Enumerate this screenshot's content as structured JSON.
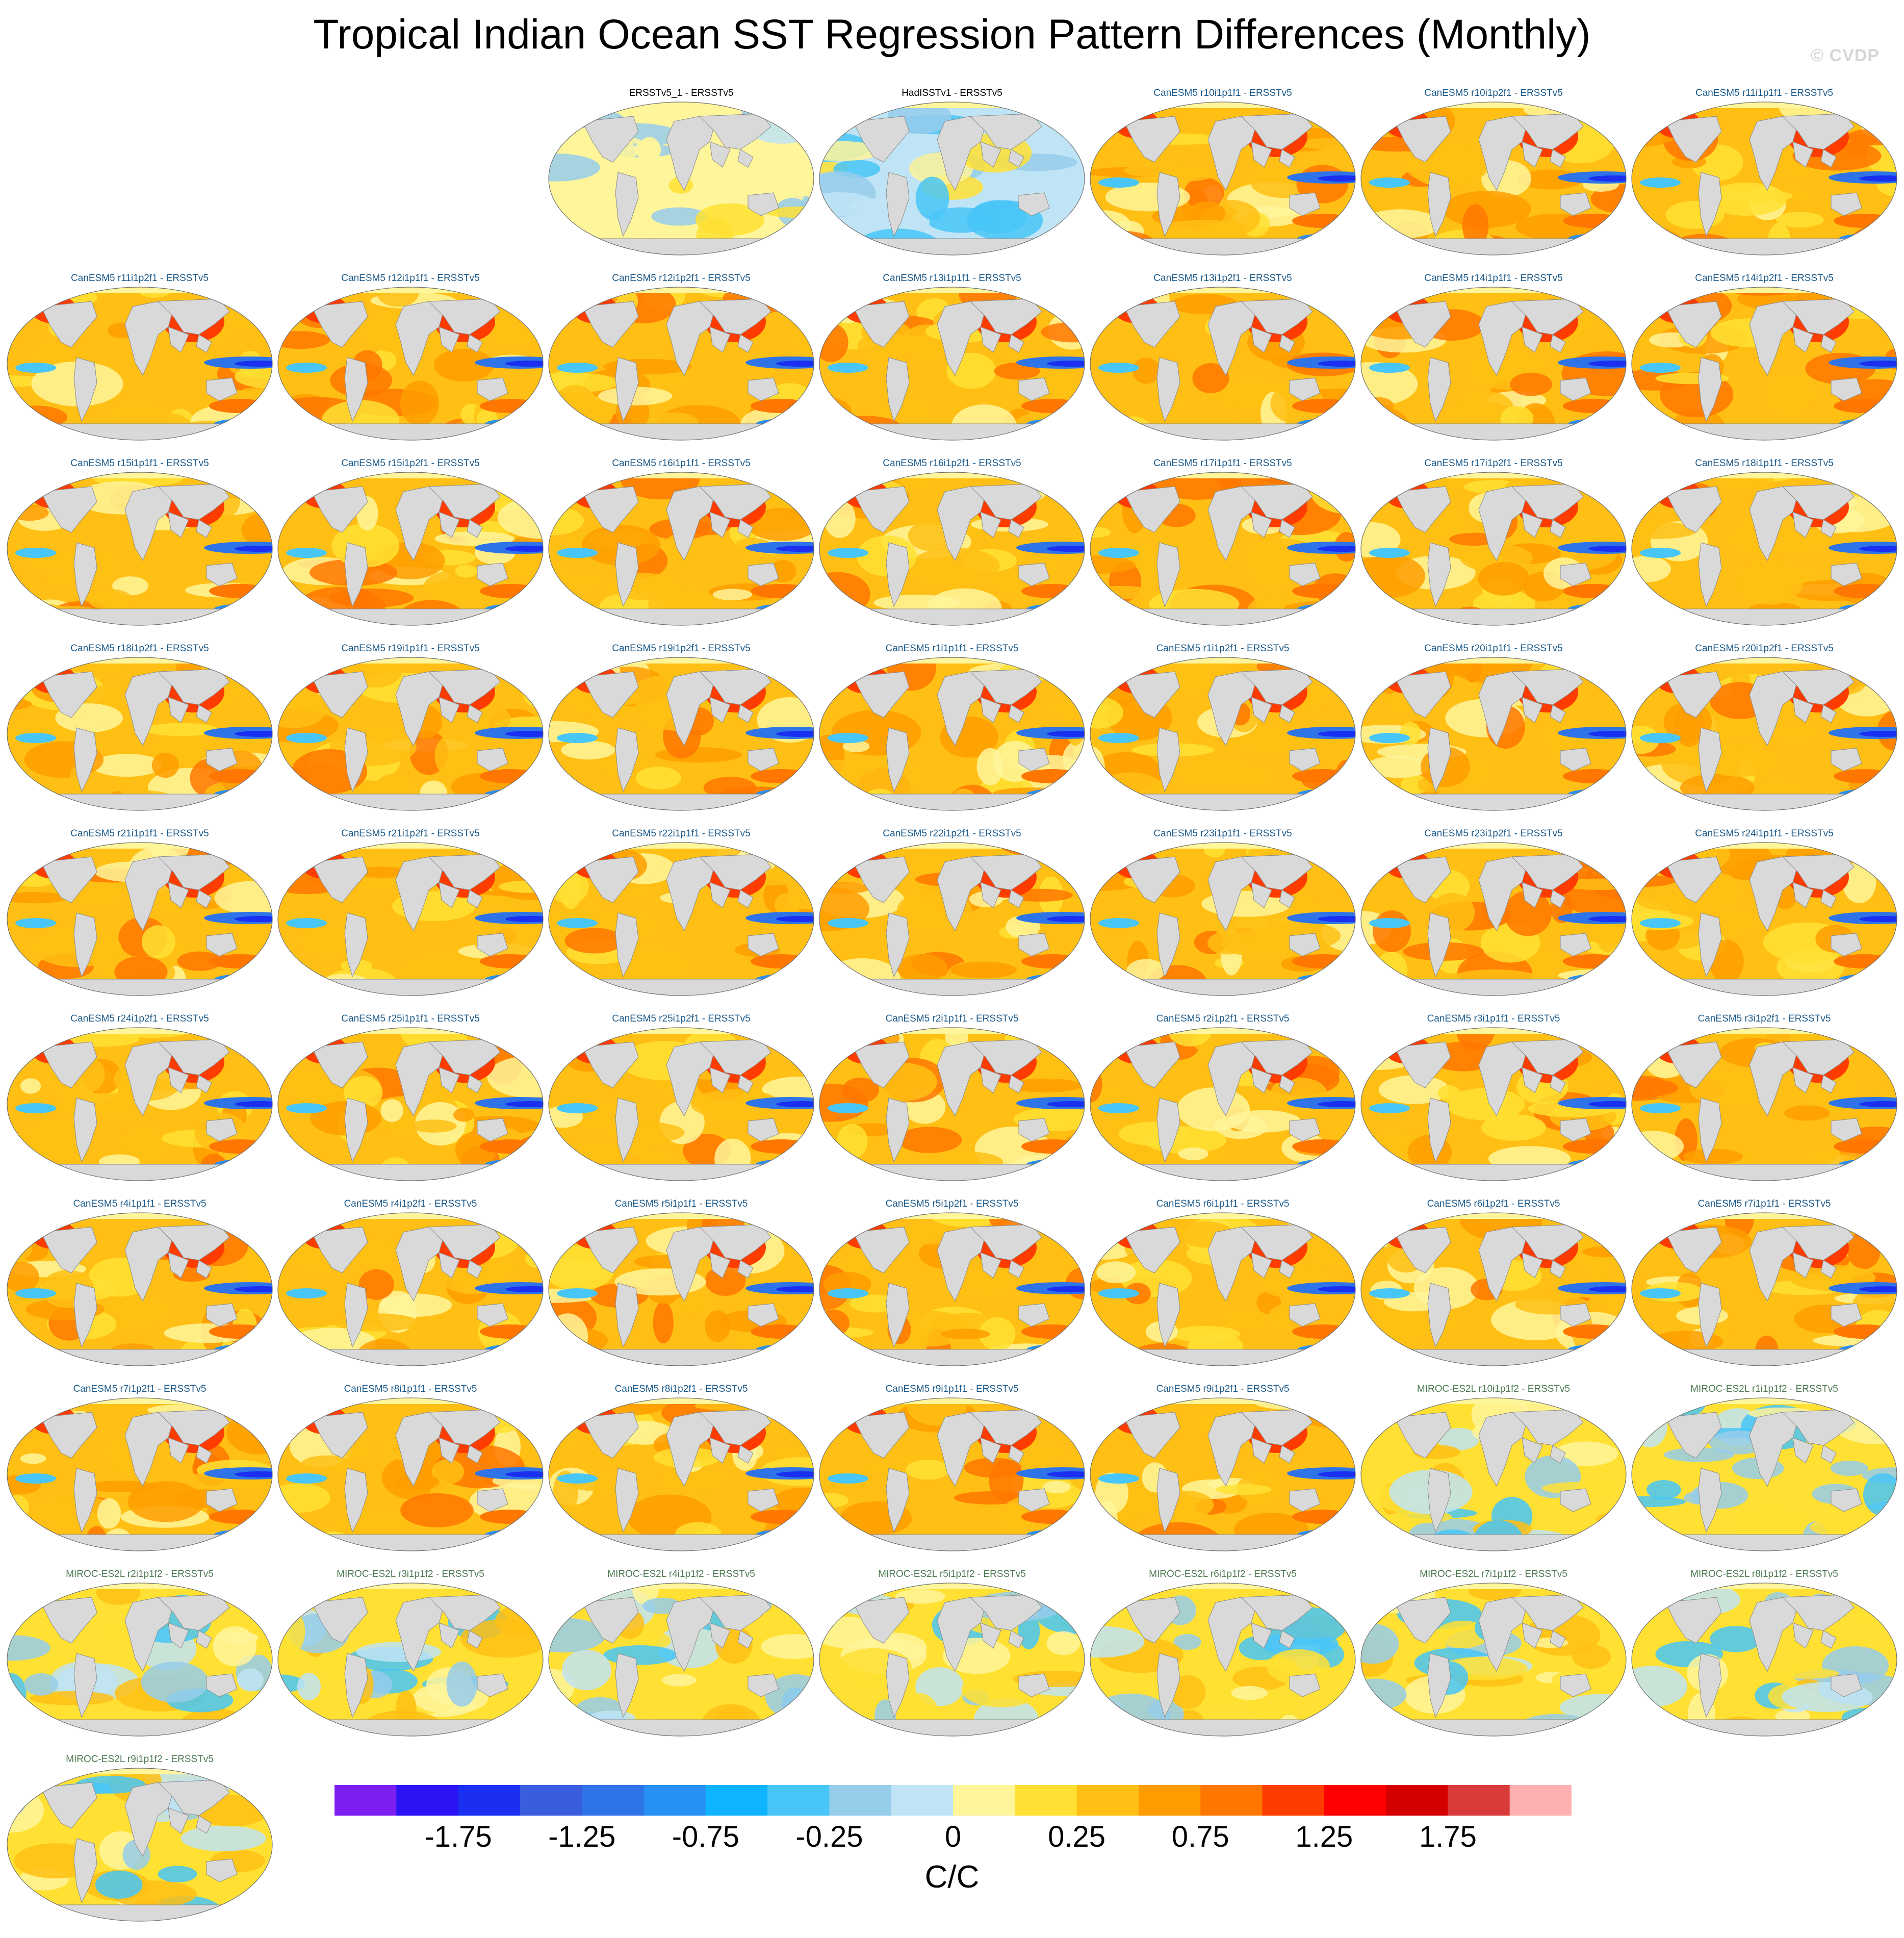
{
  "title": "Tropical Indian Ocean SST Regression Pattern Differences (Monthly)",
  "watermark": "© CVDP",
  "units": "C/C",
  "title_colors": {
    "obs": "#000000",
    "CanESM5": "#1c5a8a",
    "MIROC": "#4e7a52"
  },
  "panels": [
    {
      "label": "ERSSTv5_1 - ERSSTv5",
      "group": "obs",
      "style": "obs1"
    },
    {
      "label": "HadISSTv1 - ERSSTv5",
      "group": "obs",
      "style": "obs2"
    },
    {
      "label": "CanESM5 r10i1p1f1 - ERSSTv5",
      "group": "CanESM5",
      "style": "warm"
    },
    {
      "label": "CanESM5 r10i1p2f1 - ERSSTv5",
      "group": "CanESM5",
      "style": "warm"
    },
    {
      "label": "CanESM5 r11i1p1f1 - ERSSTv5",
      "group": "CanESM5",
      "style": "warm"
    },
    {
      "label": "CanESM5 r11i1p2f1 - ERSSTv5",
      "group": "CanESM5",
      "style": "warm"
    },
    {
      "label": "CanESM5 r12i1p1f1 - ERSSTv5",
      "group": "CanESM5",
      "style": "warm"
    },
    {
      "label": "CanESM5 r12i1p2f1 - ERSSTv5",
      "group": "CanESM5",
      "style": "warm"
    },
    {
      "label": "CanESM5 r13i1p1f1 - ERSSTv5",
      "group": "CanESM5",
      "style": "warm"
    },
    {
      "label": "CanESM5 r13i1p2f1 - ERSSTv5",
      "group": "CanESM5",
      "style": "warm"
    },
    {
      "label": "CanESM5 r14i1p1f1 - ERSSTv5",
      "group": "CanESM5",
      "style": "warm"
    },
    {
      "label": "CanESM5 r14i1p2f1 - ERSSTv5",
      "group": "CanESM5",
      "style": "warm"
    },
    {
      "label": "CanESM5 r15i1p1f1 - ERSSTv5",
      "group": "CanESM5",
      "style": "warm"
    },
    {
      "label": "CanESM5 r15i1p2f1 - ERSSTv5",
      "group": "CanESM5",
      "style": "warm"
    },
    {
      "label": "CanESM5 r16i1p1f1 - ERSSTv5",
      "group": "CanESM5",
      "style": "warm"
    },
    {
      "label": "CanESM5 r16i1p2f1 - ERSSTv5",
      "group": "CanESM5",
      "style": "warm"
    },
    {
      "label": "CanESM5 r17i1p1f1 - ERSSTv5",
      "group": "CanESM5",
      "style": "warm"
    },
    {
      "label": "CanESM5 r17i1p2f1 - ERSSTv5",
      "group": "CanESM5",
      "style": "warm"
    },
    {
      "label": "CanESM5 r18i1p1f1 - ERSSTv5",
      "group": "CanESM5",
      "style": "warm"
    },
    {
      "label": "CanESM5 r18i1p2f1 - ERSSTv5",
      "group": "CanESM5",
      "style": "warm"
    },
    {
      "label": "CanESM5 r19i1p1f1 - ERSSTv5",
      "group": "CanESM5",
      "style": "warm"
    },
    {
      "label": "CanESM5 r19i1p2f1 - ERSSTv5",
      "group": "CanESM5",
      "style": "warm"
    },
    {
      "label": "CanESM5 r1i1p1f1 - ERSSTv5",
      "group": "CanESM5",
      "style": "warm"
    },
    {
      "label": "CanESM5 r1i1p2f1 - ERSSTv5",
      "group": "CanESM5",
      "style": "warm"
    },
    {
      "label": "CanESM5 r20i1p1f1 - ERSSTv5",
      "group": "CanESM5",
      "style": "warm"
    },
    {
      "label": "CanESM5 r20i1p2f1 - ERSSTv5",
      "group": "CanESM5",
      "style": "warm"
    },
    {
      "label": "CanESM5 r21i1p1f1 - ERSSTv5",
      "group": "CanESM5",
      "style": "warm"
    },
    {
      "label": "CanESM5 r21i1p2f1 - ERSSTv5",
      "group": "CanESM5",
      "style": "warm"
    },
    {
      "label": "CanESM5 r22i1p1f1 - ERSSTv5",
      "group": "CanESM5",
      "style": "warm"
    },
    {
      "label": "CanESM5 r22i1p2f1 - ERSSTv5",
      "group": "CanESM5",
      "style": "warm"
    },
    {
      "label": "CanESM5 r23i1p1f1 - ERSSTv5",
      "group": "CanESM5",
      "style": "warm"
    },
    {
      "label": "CanESM5 r23i1p2f1 - ERSSTv5",
      "group": "CanESM5",
      "style": "warm"
    },
    {
      "label": "CanESM5 r24i1p1f1 - ERSSTv5",
      "group": "CanESM5",
      "style": "warm"
    },
    {
      "label": "CanESM5 r24i1p2f1 - ERSSTv5",
      "group": "CanESM5",
      "style": "warm"
    },
    {
      "label": "CanESM5 r25i1p1f1 - ERSSTv5",
      "group": "CanESM5",
      "style": "warm"
    },
    {
      "label": "CanESM5 r25i1p2f1 - ERSSTv5",
      "group": "CanESM5",
      "style": "warm"
    },
    {
      "label": "CanESM5 r2i1p1f1 - ERSSTv5",
      "group": "CanESM5",
      "style": "warm"
    },
    {
      "label": "CanESM5 r2i1p2f1 - ERSSTv5",
      "group": "CanESM5",
      "style": "warm"
    },
    {
      "label": "CanESM5 r3i1p1f1 - ERSSTv5",
      "group": "CanESM5",
      "style": "warm"
    },
    {
      "label": "CanESM5 r3i1p2f1 - ERSSTv5",
      "group": "CanESM5",
      "style": "warm"
    },
    {
      "label": "CanESM5 r4i1p1f1 - ERSSTv5",
      "group": "CanESM5",
      "style": "warm"
    },
    {
      "label": "CanESM5 r4i1p2f1 - ERSSTv5",
      "group": "CanESM5",
      "style": "warm"
    },
    {
      "label": "CanESM5 r5i1p1f1 - ERSSTv5",
      "group": "CanESM5",
      "style": "warm"
    },
    {
      "label": "CanESM5 r5i1p2f1 - ERSSTv5",
      "group": "CanESM5",
      "style": "warm"
    },
    {
      "label": "CanESM5 r6i1p1f1 - ERSSTv5",
      "group": "CanESM5",
      "style": "warm"
    },
    {
      "label": "CanESM5 r6i1p2f1 - ERSSTv5",
      "group": "CanESM5",
      "style": "warm"
    },
    {
      "label": "CanESM5 r7i1p1f1 - ERSSTv5",
      "group": "CanESM5",
      "style": "warm"
    },
    {
      "label": "CanESM5 r7i1p2f1 - ERSSTv5",
      "group": "CanESM5",
      "style": "warm"
    },
    {
      "label": "CanESM5 r8i1p1f1 - ERSSTv5",
      "group": "CanESM5",
      "style": "warm"
    },
    {
      "label": "CanESM5 r8i1p2f1 - ERSSTv5",
      "group": "CanESM5",
      "style": "warm"
    },
    {
      "label": "CanESM5 r9i1p1f1 - ERSSTv5",
      "group": "CanESM5",
      "style": "warm"
    },
    {
      "label": "CanESM5 r9i1p2f1 - ERSSTv5",
      "group": "CanESM5",
      "style": "warm"
    },
    {
      "label": "MIROC-ES2L r10i1p1f2 - ERSSTv5",
      "group": "MIROC",
      "style": "mixed"
    },
    {
      "label": "MIROC-ES2L r1i1p1f2 - ERSSTv5",
      "group": "MIROC",
      "style": "mixed"
    },
    {
      "label": "MIROC-ES2L r2i1p1f2 - ERSSTv5",
      "group": "MIROC",
      "style": "mixed"
    },
    {
      "label": "MIROC-ES2L r3i1p1f2 - ERSSTv5",
      "group": "MIROC",
      "style": "mixed"
    },
    {
      "label": "MIROC-ES2L r4i1p1f2 - ERSSTv5",
      "group": "MIROC",
      "style": "mixed"
    },
    {
      "label": "MIROC-ES2L r5i1p1f2 - ERSSTv5",
      "group": "MIROC",
      "style": "mixed"
    },
    {
      "label": "MIROC-ES2L r6i1p1f2 - ERSSTv5",
      "group": "MIROC",
      "style": "mixed"
    },
    {
      "label": "MIROC-ES2L r7i1p1f2 - ERSSTv5",
      "group": "MIROC",
      "style": "mixed"
    },
    {
      "label": "MIROC-ES2L r8i1p1f2 - ERSSTv5",
      "group": "MIROC",
      "style": "mixed"
    },
    {
      "label": "MIROC-ES2L r9i1p1f2 - ERSSTv5",
      "group": "MIROC",
      "style": "mixed"
    }
  ],
  "colorbar": {
    "colors": [
      "#7c1ff0",
      "#2a13f5",
      "#1a2ff0",
      "#3a5de0",
      "#2e74e8",
      "#2690f5",
      "#0fb4ff",
      "#48c6f7",
      "#96cdeb",
      "#bfe4f5",
      "#fff59a",
      "#ffe033",
      "#ffbf14",
      "#ff9d00",
      "#ff7700",
      "#ff3c00",
      "#ff0000",
      "#d40000",
      "#d93a3a",
      "#ffb0b0"
    ],
    "labels": [
      "-1.75",
      "-1.25",
      "-0.75",
      "-0.25",
      "0",
      "0.25",
      "0.75",
      "1.25",
      "1.75"
    ]
  }
}
